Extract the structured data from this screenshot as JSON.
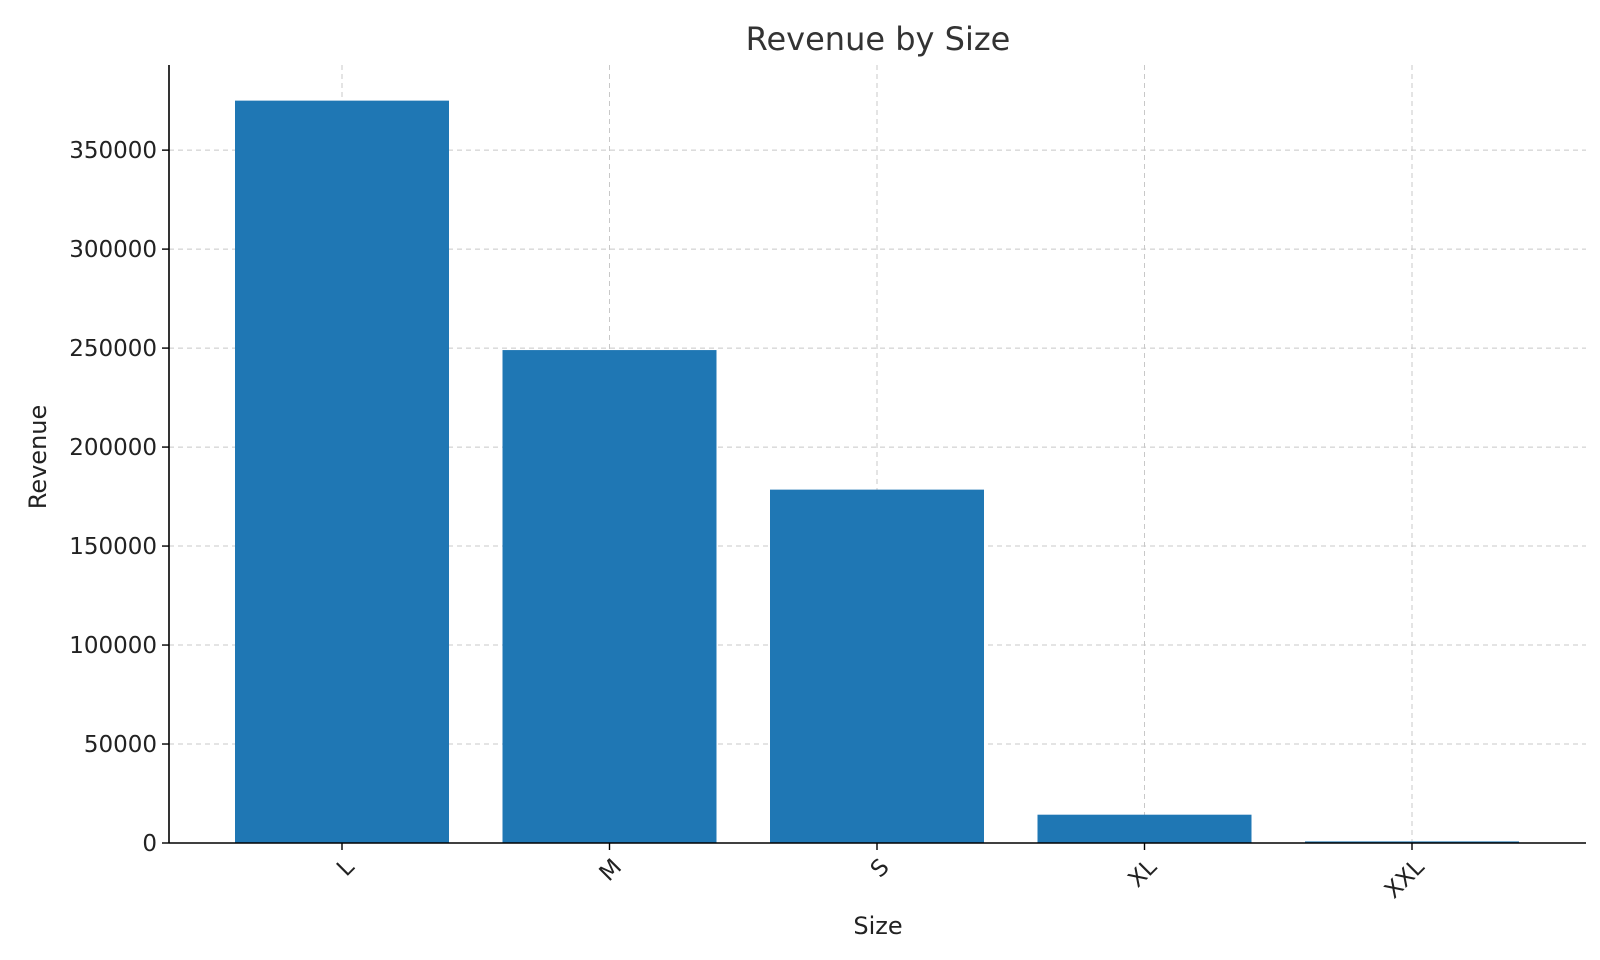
{
  "chart_data": {
    "type": "bar",
    "title": "Revenue by Size",
    "xlabel": "Size",
    "ylabel": "Revenue",
    "categories": [
      "L",
      "M",
      "S",
      "XL",
      "XXL"
    ],
    "values": [
      375000,
      249000,
      178500,
      14300,
      800
    ],
    "ylim": [
      0,
      393000
    ],
    "yticks": [
      0,
      50000,
      100000,
      150000,
      200000,
      250000,
      300000,
      350000
    ],
    "ytick_labels": [
      "0",
      "50000",
      "100000",
      "150000",
      "200000",
      "250000",
      "300000",
      "350000"
    ],
    "grid": true,
    "bar_color": "#1f77b4"
  }
}
